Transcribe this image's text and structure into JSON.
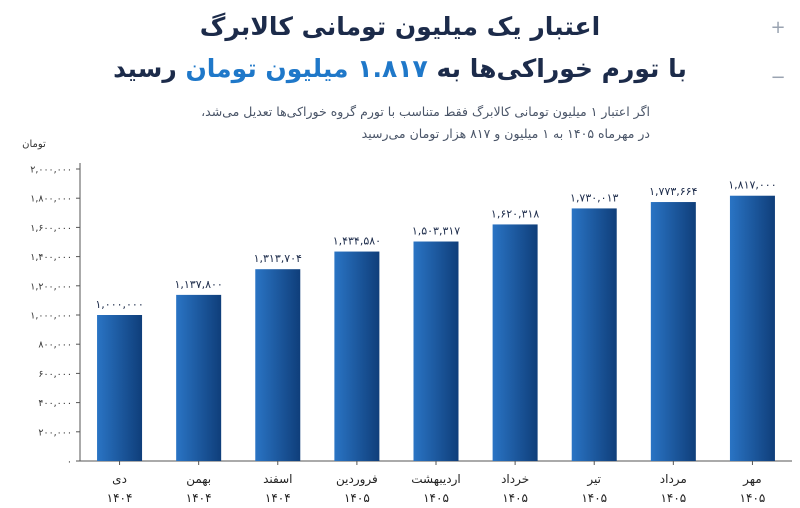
{
  "header": {
    "title_line1": "اعتبار یک میلیون تومانی کالابرگ",
    "title_line2_part1": "با تورم خوراکی‌ها به ",
    "title_line2_accent": "۱.۸۱۷ میلیون تومان",
    "title_line2_part2": " رسید",
    "subtitle_line1": "اگر اعتبار ۱ میلیون تومانی کالابرگ فقط متناسب با تورم گروه خوراکی‌ها تعدیل می‌شد،",
    "subtitle_line2": "در مهرماه ۱۴۰۵ به ۱ میلیون و ۸۱۷ هزار تومان می‌رسید"
  },
  "controls": {
    "zoom_in": "+",
    "zoom_out": "−"
  },
  "colors": {
    "bar_light": "#2a74c4",
    "bar_dark": "#0f3e7a",
    "accent": "#1f78c9",
    "title": "#1c2b4a"
  },
  "chart_data": {
    "type": "bar",
    "title": "اعتبار یک میلیون تومانی کالابرگ با تورم خوراکی‌ها به ۱.۸۱۷ میلیون تومان رسید",
    "ylabel": "تومان",
    "ylim": [
      0,
      2000000
    ],
    "yticks": [
      0,
      200000,
      400000,
      600000,
      800000,
      1000000,
      1200000,
      1400000,
      1600000,
      1800000,
      2000000
    ],
    "ytick_labels": [
      "۰",
      "۲۰۰,۰۰۰",
      "۴۰۰,۰۰۰",
      "۶۰۰,۰۰۰",
      "۸۰۰,۰۰۰",
      "۱,۰۰۰,۰۰۰",
      "۱,۲۰۰,۰۰۰",
      "۱,۴۰۰,۰۰۰",
      "۱,۶۰۰,۰۰۰",
      "۱,۸۰۰,۰۰۰",
      "۲,۰۰۰,۰۰۰"
    ],
    "categories": [
      {
        "month": "دی",
        "year": "۱۴۰۴"
      },
      {
        "month": "بهمن",
        "year": "۱۴۰۴"
      },
      {
        "month": "اسفند",
        "year": "۱۴۰۴"
      },
      {
        "month": "فروردین",
        "year": "۱۴۰۵"
      },
      {
        "month": "اردیبهشت",
        "year": "۱۴۰۵"
      },
      {
        "month": "خرداد",
        "year": "۱۴۰۵"
      },
      {
        "month": "تیر",
        "year": "۱۴۰۵"
      },
      {
        "month": "مرداد",
        "year": "۱۴۰۵"
      },
      {
        "month": "مهر",
        "year": "۱۴۰۵"
      }
    ],
    "values": [
      1000000,
      1137800,
      1313704,
      1434580,
      1503317,
      1620318,
      1730013,
      1773664,
      1817000
    ],
    "value_labels": [
      "۱,۰۰۰,۰۰۰",
      "۱,۱۳۷,۸۰۰",
      "۱,۳۱۳,۷۰۴",
      "۱,۴۳۴,۵۸۰",
      "۱,۵۰۳,۳۱۷",
      "۱,۶۲۰,۳۱۸",
      "۱,۷۳۰,۰۱۳",
      "۱,۷۷۳,۶۶۴",
      "۱,۸۱۷,۰۰۰"
    ],
    "grid": false,
    "legend": "none"
  }
}
